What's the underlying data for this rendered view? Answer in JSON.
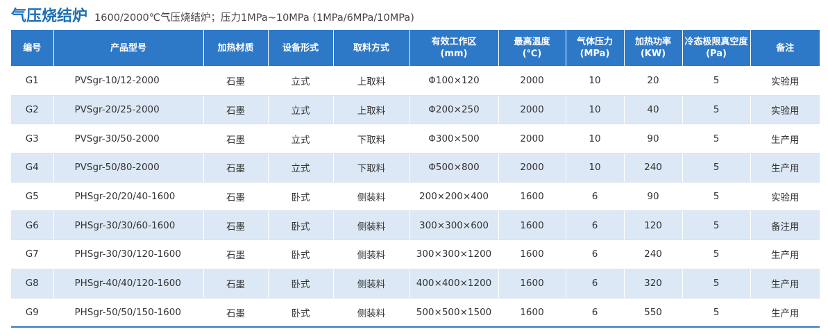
{
  "title": "气压烧结炉",
  "subtitle": "1600/2000℃气压烧结炉；压力1MPa~10MPa (1MPa/6MPa/10MPa)",
  "columns": [
    {
      "line1": "编号",
      "line2": ""
    },
    {
      "line1": "产品型号",
      "line2": ""
    },
    {
      "line1": "加热材质",
      "line2": ""
    },
    {
      "line1": "设备形式",
      "line2": ""
    },
    {
      "line1": "取料方式",
      "line2": ""
    },
    {
      "line1": "有效工作区",
      "line2": "(mm)"
    },
    {
      "line1": "最高温度",
      "line2": "(℃)"
    },
    {
      "line1": "气体压力",
      "line2": "(MPa)"
    },
    {
      "line1": "加热功率",
      "line2": "(KW)"
    },
    {
      "line1": "冷态极限真空度",
      "line2": "(Pa)"
    },
    {
      "line1": "备注",
      "line2": ""
    }
  ],
  "rows": [
    [
      "G1",
      "PVSgr-10/12-2000",
      "石墨",
      "立式",
      "上取料",
      "Φ100×120",
      "2000",
      "10",
      "20",
      "5",
      "实验用"
    ],
    [
      "G2",
      "PVSgr-20/25-2000",
      "石墨",
      "立式",
      "上取料",
      "Φ200×250",
      "2000",
      "10",
      "40",
      "5",
      "实验用"
    ],
    [
      "G3",
      "PVSgr-30/50-2000",
      "石墨",
      "立式",
      "下取料",
      "Φ300×500",
      "2000",
      "10",
      "90",
      "5",
      "生产用"
    ],
    [
      "G4",
      "PVSgr-50/80-2000",
      "石墨",
      "立式",
      "下取料",
      "Φ500×800",
      "2000",
      "10",
      "240",
      "5",
      "生产用"
    ],
    [
      "G5",
      "PHSgr-20/20/40-1600",
      "石墨",
      "卧式",
      "侧装料",
      "200×200×400",
      "1600",
      "6",
      "90",
      "5",
      "实验用"
    ],
    [
      "G6",
      "PHSgr-30/30/60-1600",
      "石墨",
      "卧式",
      "侧装料",
      "300×300×600",
      "1600",
      "6",
      "120",
      "5",
      "备注用"
    ],
    [
      "G7",
      "PHSgr-30/30/120-1600",
      "石墨",
      "卧式",
      "侧装料",
      "300×300×1200",
      "1600",
      "6",
      "240",
      "5",
      "生产用"
    ],
    [
      "G8",
      "PHSgr-40/40/120-1600",
      "石墨",
      "卧式",
      "侧装料",
      "400×400×1200",
      "1600",
      "6",
      "320",
      "5",
      "生产用"
    ],
    [
      "G9",
      "PHSgr-50/50/150-1600",
      "石墨",
      "卧式",
      "侧装料",
      "500×500×1500",
      "1600",
      "6",
      "550",
      "5",
      "生产用"
    ]
  ]
}
